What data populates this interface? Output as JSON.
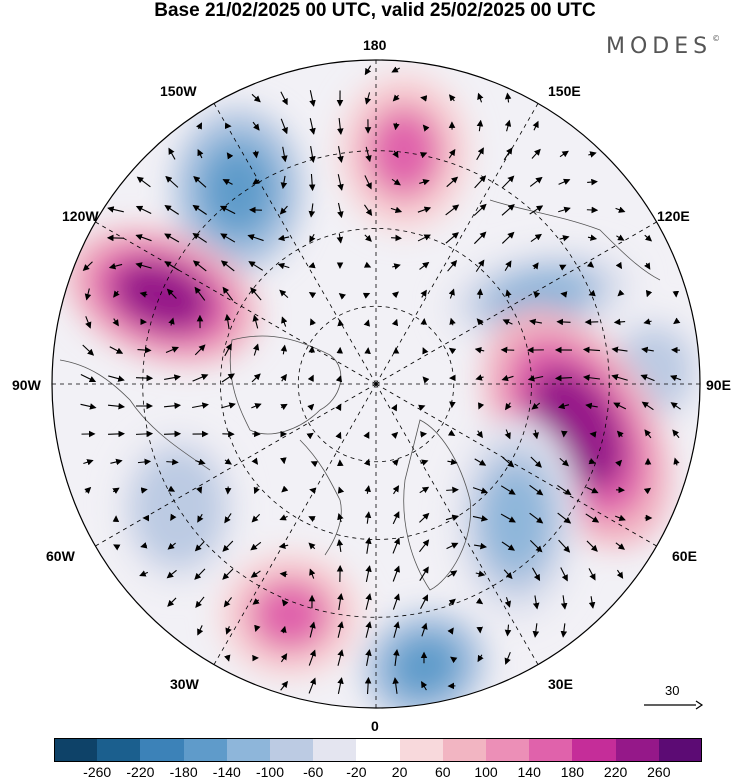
{
  "title": "Base 21/02/2025 00 UTC, valid 25/02/2025 00 UTC",
  "brand": "MODES",
  "brand_mark": "©",
  "map": {
    "projection": "north-polar-stereographic",
    "longitude_labels": {
      "top": "180",
      "top_left": "150W",
      "top_right": "150E",
      "upper_left": "120W",
      "upper_right": "120E",
      "left": "90W",
      "right": "90E",
      "lower_left": "60W",
      "lower_right": "60E",
      "bottom_left": "30W",
      "bottom_right": "30E",
      "bottom": "0"
    },
    "vector_scale_label": "30",
    "anomalies": [
      {
        "sign": "negative",
        "level": -180,
        "location": "near 150W-120W, Alaska/N Pacific"
      },
      {
        "sign": "positive",
        "level": 220,
        "location": "near 110W, western Canada"
      },
      {
        "sign": "positive",
        "level": 140,
        "location": "near 170E, Bering/E Siberia"
      },
      {
        "sign": "negative",
        "level": -140,
        "location": "near 120E, central Siberia"
      },
      {
        "sign": "negative",
        "level": -100,
        "location": "near 90E-100E"
      },
      {
        "sign": "positive",
        "level": 220,
        "location": "near 70E, western Siberia"
      },
      {
        "sign": "negative",
        "level": -140,
        "location": "near 40E, Scandinavia/Russia"
      },
      {
        "sign": "negative",
        "level": -180,
        "location": "near 10E, North Atlantic/Europe"
      },
      {
        "sign": "positive",
        "level": 140,
        "location": "near 35W, central Atlantic"
      },
      {
        "sign": "negative",
        "level": -100,
        "location": "near 70W, eastern Canada"
      }
    ]
  },
  "colorbar": {
    "colors": [
      "#0e4268",
      "#1b5f8e",
      "#3c82b8",
      "#5f9bca",
      "#8eb6da",
      "#bccbe3",
      "#e4e5f0",
      "#ffffff",
      "#f8d9dc",
      "#f2b5c2",
      "#ec8fb7",
      "#e062ab",
      "#c52d99",
      "#951889",
      "#5c0b74"
    ],
    "ticks": [
      "-260",
      "-220",
      "-180",
      "-140",
      "-100",
      "-60",
      "-20",
      "20",
      "60",
      "100",
      "140",
      "180",
      "220",
      "260"
    ]
  }
}
